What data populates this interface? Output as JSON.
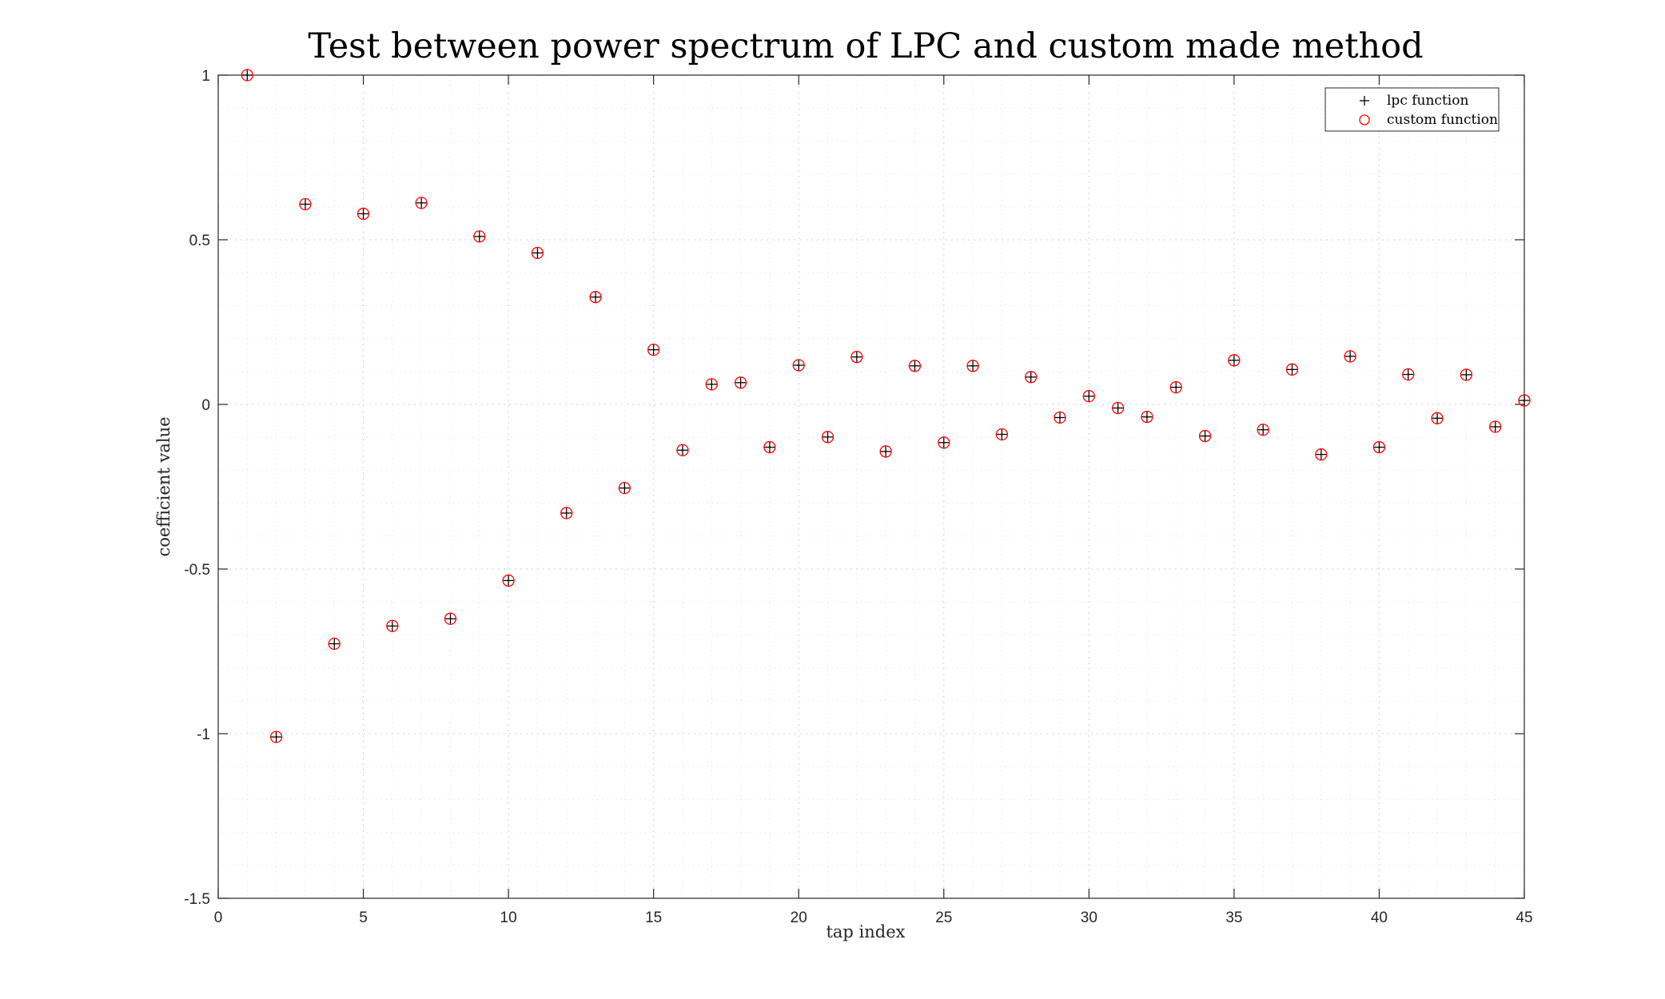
{
  "chart_data": {
    "type": "scatter",
    "title": "Test between power spectrum of LPC and custom made method",
    "xlabel": "tap index",
    "ylabel": "coefficient value",
    "xlim": [
      0,
      45
    ],
    "ylim": [
      -1.5,
      1
    ],
    "xticks": [
      0,
      5,
      10,
      15,
      20,
      25,
      30,
      35,
      40,
      45
    ],
    "yticks": [
      -1.5,
      -1,
      -0.5,
      0,
      0.5,
      1
    ],
    "xtick_labels": [
      "0",
      "5",
      "10",
      "15",
      "20",
      "25",
      "30",
      "35",
      "40",
      "45"
    ],
    "ytick_labels": [
      "-1.5",
      "-1",
      "-0.5",
      "0",
      "0.5",
      "1"
    ],
    "grid": true,
    "minor_grid": true,
    "legend_position": "top-right",
    "legend": [
      {
        "name": "lpc function",
        "marker": "plus",
        "color": "#000000"
      },
      {
        "name": "custom function",
        "marker": "circle",
        "color": "#ff0000"
      }
    ],
    "x": [
      1,
      2,
      3,
      4,
      5,
      6,
      7,
      8,
      9,
      10,
      11,
      12,
      13,
      14,
      15,
      16,
      17,
      18,
      19,
      20,
      21,
      22,
      23,
      24,
      25,
      26,
      27,
      28,
      29,
      30,
      31,
      32,
      33,
      34,
      35,
      36,
      37,
      38,
      39,
      40,
      41,
      42,
      43,
      44,
      45
    ],
    "series": [
      {
        "name": "lpc function",
        "marker": "plus",
        "color": "#000000",
        "values": [
          1.0,
          -1.01,
          0.608,
          -0.727,
          0.579,
          -0.673,
          0.612,
          -0.651,
          0.51,
          -0.535,
          0.46,
          -0.33,
          0.326,
          -0.254,
          0.166,
          -0.139,
          0.061,
          0.066,
          -0.13,
          0.119,
          -0.099,
          0.144,
          -0.143,
          0.117,
          -0.116,
          0.117,
          -0.091,
          0.083,
          -0.04,
          0.025,
          -0.011,
          -0.038,
          0.052,
          -0.096,
          0.134,
          -0.077,
          0.106,
          -0.152,
          0.146,
          -0.13,
          0.091,
          -0.042,
          0.09,
          -0.068,
          0.012
        ]
      },
      {
        "name": "custom function",
        "marker": "circle",
        "color": "#ff0000",
        "values": [
          1.0,
          -1.01,
          0.608,
          -0.727,
          0.579,
          -0.673,
          0.612,
          -0.651,
          0.51,
          -0.535,
          0.46,
          -0.33,
          0.326,
          -0.254,
          0.166,
          -0.139,
          0.061,
          0.066,
          -0.13,
          0.119,
          -0.099,
          0.144,
          -0.143,
          0.117,
          -0.116,
          0.117,
          -0.091,
          0.083,
          -0.04,
          0.025,
          -0.011,
          -0.038,
          0.052,
          -0.096,
          0.134,
          -0.077,
          0.106,
          -0.152,
          0.146,
          -0.13,
          0.091,
          -0.042,
          0.09,
          -0.068,
          0.012
        ]
      }
    ]
  }
}
